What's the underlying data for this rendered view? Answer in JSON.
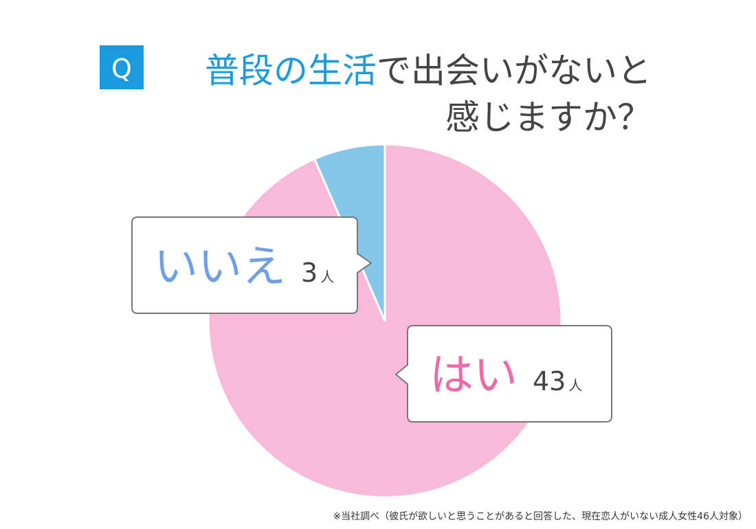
{
  "chart_data": {
    "type": "pie",
    "badge": "Q",
    "title": {
      "highlight": "普段の生活",
      "line1_rest": "で出会いがないと",
      "line2": "感じますか？"
    },
    "categories": [
      "はい",
      "いいえ"
    ],
    "values": [
      43,
      3
    ],
    "unit": "人",
    "colors": [
      "#f9b9d9",
      "#86c6e8"
    ],
    "label_colors": [
      "#ee6aa7",
      "#6ea0e6"
    ],
    "note": "※当社調べ（彼氏が欲しいと思うことがあると回答した、現在恋人がいない成人女性46人対象）"
  }
}
